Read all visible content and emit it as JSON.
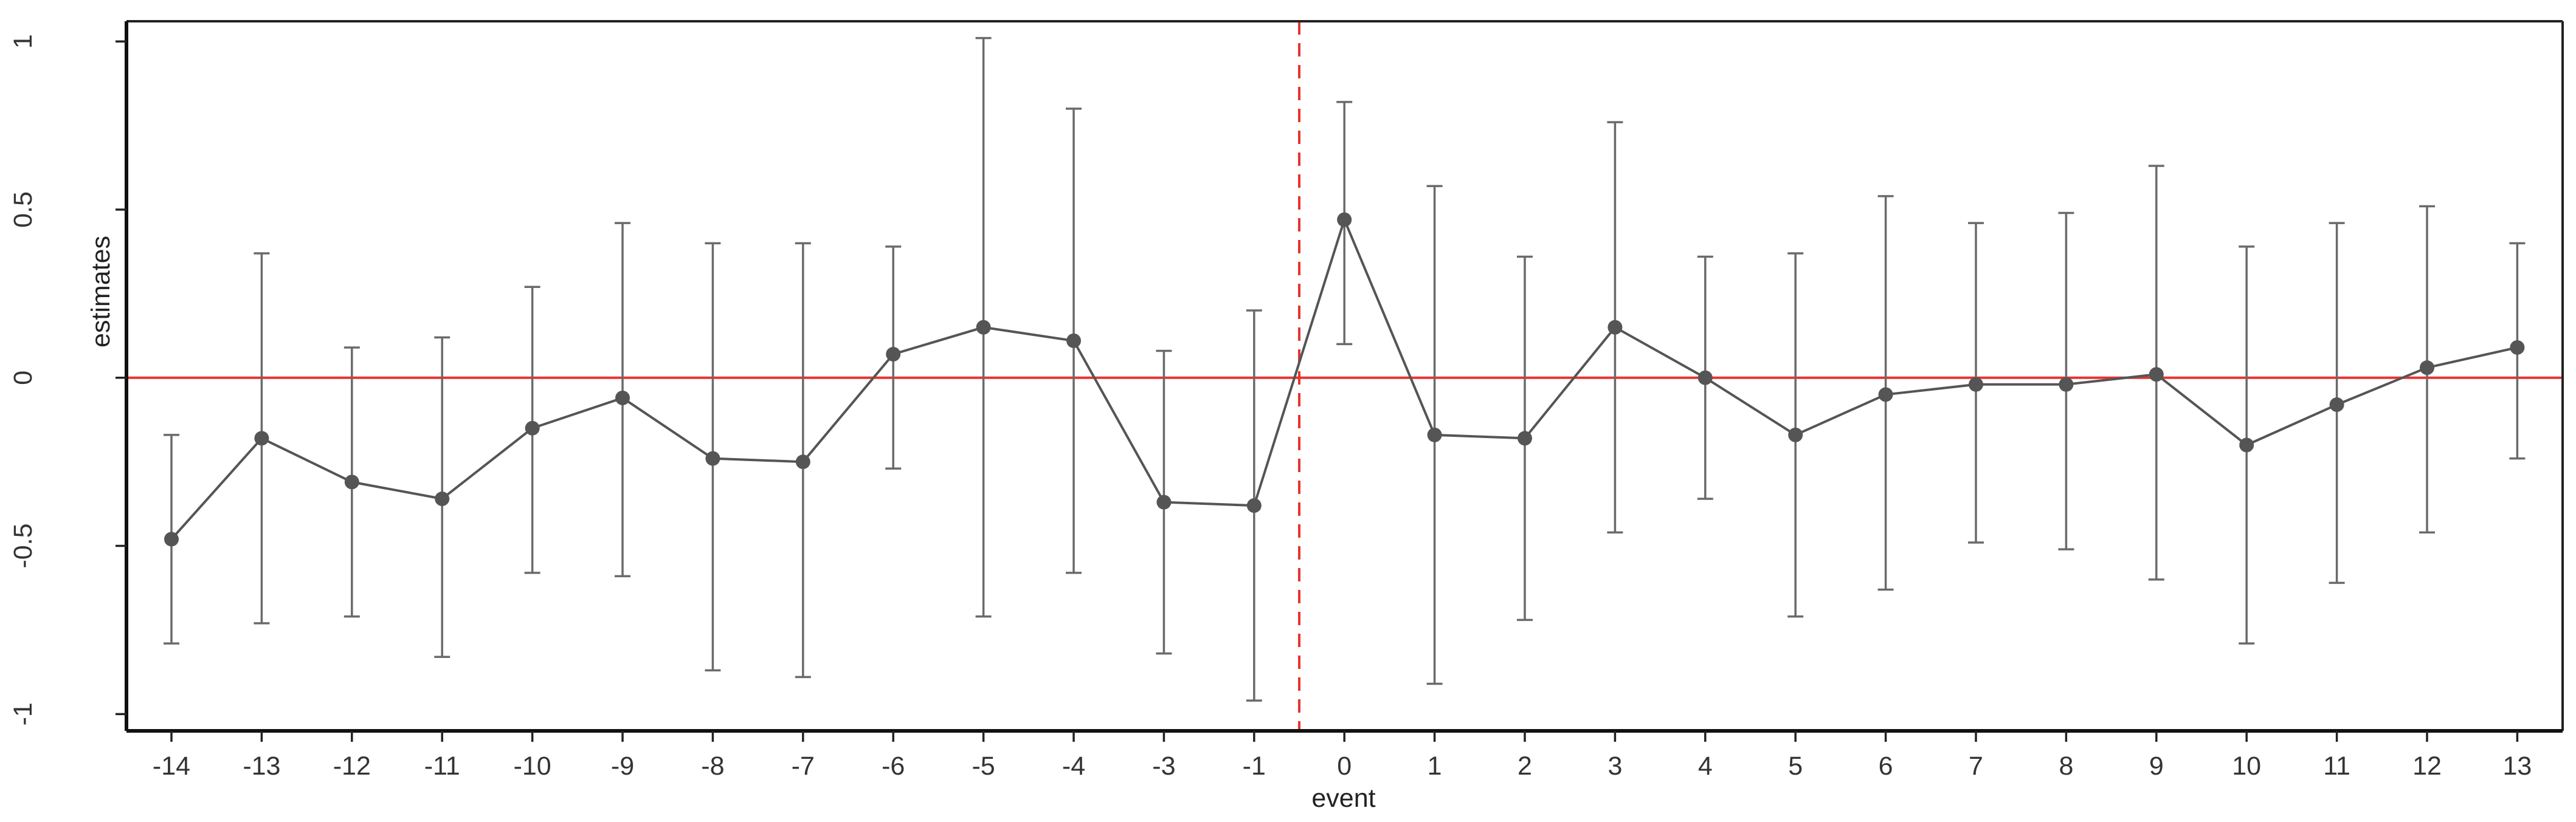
{
  "chart_data": {
    "type": "line",
    "xlabel": "event",
    "ylabel": "estimates",
    "x": [
      -14,
      -13,
      -12,
      -11,
      -10,
      -9,
      -8,
      -7,
      -6,
      -5,
      -4,
      -3,
      -1,
      0,
      1,
      2,
      3,
      4,
      5,
      6,
      7,
      8,
      9,
      10,
      11,
      12,
      13
    ],
    "x_tick_labels": [
      "-14",
      "-13",
      "-12",
      "-11",
      "-10",
      "-9",
      "-8",
      "-7",
      "-6",
      "-5",
      "-4",
      "-3",
      "-1",
      "0",
      "1",
      "2",
      "3",
      "4",
      "5",
      "6",
      "7",
      "8",
      "9",
      "10",
      "11",
      "12",
      "13"
    ],
    "series": [
      {
        "values": [
          -0.48,
          -0.18,
          -0.31,
          -0.36,
          -0.15,
          -0.06,
          -0.24,
          -0.25,
          0.07,
          0.15,
          0.11,
          -0.37,
          -0.38,
          0.47,
          -0.17,
          -0.18,
          0.15,
          0.0,
          -0.17,
          -0.05,
          -0.02,
          -0.02,
          0.01,
          -0.2,
          -0.08,
          0.03,
          0.09
        ],
        "ci_lower": [
          -0.79,
          -0.73,
          -0.71,
          -0.83,
          -0.58,
          -0.59,
          -0.87,
          -0.89,
          -0.27,
          -0.71,
          -0.58,
          -0.82,
          -0.96,
          0.1,
          -0.91,
          -0.72,
          -0.46,
          -0.36,
          -0.71,
          -0.63,
          -0.49,
          -0.51,
          -0.6,
          -0.79,
          -0.61,
          -0.46,
          -0.24
        ],
        "ci_upper": [
          -0.17,
          0.37,
          0.09,
          0.12,
          0.27,
          0.46,
          0.4,
          0.4,
          0.39,
          1.01,
          0.8,
          0.08,
          0.2,
          0.82,
          0.57,
          0.36,
          0.76,
          0.36,
          0.37,
          0.54,
          0.46,
          0.49,
          0.63,
          0.39,
          0.46,
          0.51,
          0.4
        ],
        "color": "#555555"
      }
    ],
    "yticks": [
      -1,
      -0.5,
      0,
      0.5,
      1
    ],
    "ytick_labels": [
      "-1",
      "-0.5",
      "0",
      "0.5",
      "1"
    ],
    "ylim": [
      -1.05,
      1.06
    ],
    "reference_lines": [
      {
        "orientation": "horizontal",
        "value": 0,
        "style": "solid",
        "color": "#e8332f"
      },
      {
        "orientation": "vertical",
        "value": -0.5,
        "style": "dashed",
        "color": "#e8332f"
      }
    ],
    "grid": false,
    "legend": "none"
  }
}
